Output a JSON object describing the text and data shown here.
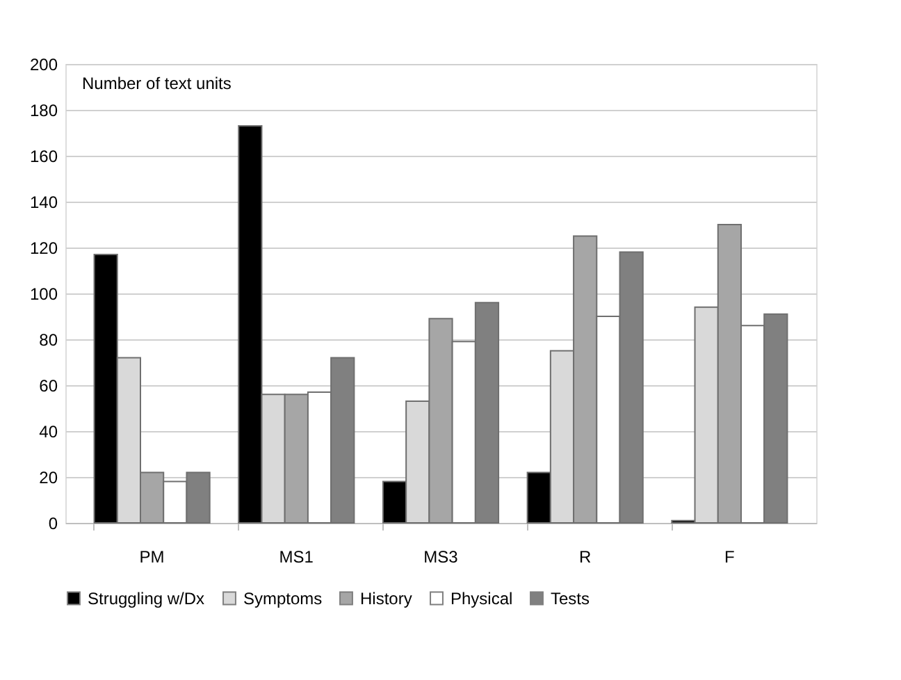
{
  "chart_data": {
    "type": "bar",
    "annotations": [
      "Number of text units"
    ],
    "categories": [
      "PM",
      "MS1",
      "MS3",
      "R",
      "F"
    ],
    "series": [
      {
        "name": "Struggling w/Dx",
        "color": "#000000",
        "values": [
          117,
          173,
          18,
          22,
          1
        ]
      },
      {
        "name": "Symptoms",
        "color": "#d9d9d9",
        "values": [
          72,
          56,
          53,
          75,
          94
        ]
      },
      {
        "name": "History",
        "color": "#a6a6a6",
        "values": [
          22,
          56,
          89,
          125,
          130
        ]
      },
      {
        "name": "Physical",
        "color": "#ffffff",
        "values": [
          18,
          57,
          79,
          90,
          86
        ]
      },
      {
        "name": "Tests",
        "color": "#808080",
        "values": [
          22,
          72,
          96,
          118,
          91
        ]
      }
    ],
    "ylim": [
      0,
      200
    ],
    "yticks": [
      0,
      20,
      40,
      60,
      80,
      100,
      120,
      140,
      160,
      180,
      200
    ],
    "grid": "y",
    "legend": "bottom"
  }
}
